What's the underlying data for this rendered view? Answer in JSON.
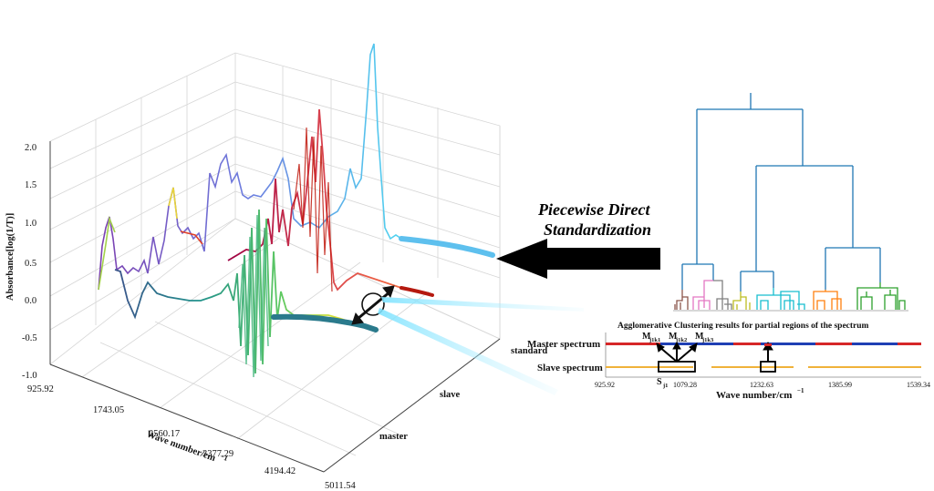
{
  "left_plot": {
    "y_axis_label": "Absorbance[log(1/T)]",
    "y_ticks": [
      "2.0",
      "1.5",
      "1.0",
      "0.5",
      "0.0",
      "-0.5",
      "-1.0"
    ],
    "x_axis_label": "Wave number/cm",
    "x_axis_exponent": "−1",
    "x_ticks": [
      "925.92",
      "1743.05",
      "2560.17",
      "3377.29",
      "4194.42",
      "5011.54"
    ],
    "depth_labels": [
      "standard",
      "slave",
      "master"
    ]
  },
  "arrow_label": {
    "line1": "Piecewise Direct",
    "line2": "Standardization"
  },
  "dendrogram": {
    "cluster_colors": [
      "#8c564b",
      "#e377c2",
      "#7f7f7f",
      "#bcbd22",
      "#17becf",
      "#ff7f0e",
      "#2ca02c"
    ],
    "link_color": "#1f77b4"
  },
  "clustering_panel": {
    "title": "Agglomerative Clustering results for partial regions of the spectrum",
    "master_label": "Master spectrum",
    "slave_label": "Slave spectrum",
    "m_labels": [
      {
        "base": "M",
        "sub": "j1k1"
      },
      {
        "base": "M",
        "sub": "j1k2"
      },
      {
        "base": "M",
        "sub": "j1k3"
      }
    ],
    "s_label": {
      "base": "S",
      "sub": "j1"
    },
    "x_ticks": [
      "925.92",
      "1079.28",
      "1232.63",
      "1385.99",
      "1539.34"
    ],
    "x_axis_label": "Wave number/cm",
    "x_axis_exponent": "−1"
  }
}
